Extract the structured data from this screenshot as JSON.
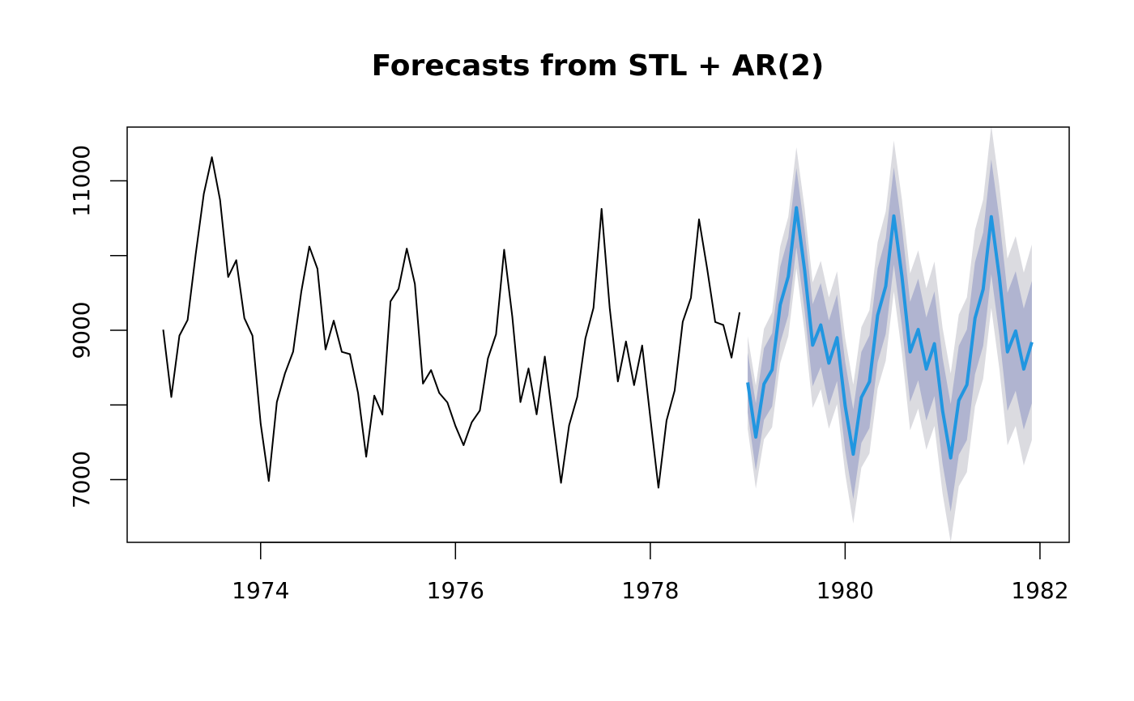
{
  "chart_data": {
    "type": "line",
    "title": "Forecasts from STL +  AR(2)",
    "xlabel": "",
    "ylabel": "",
    "xlim": [
      1972.63,
      1982.3
    ],
    "ylim": [
      6160,
      11720
    ],
    "x_ticks": [
      1974,
      1976,
      1978,
      1980,
      1982
    ],
    "y_ticks": [
      7000,
      8000,
      9000,
      10000,
      11000
    ],
    "y_tick_labels": [
      "7000",
      "",
      "9000",
      "",
      "11000"
    ],
    "grid": false,
    "legend": "none",
    "colors": {
      "history": "#000000",
      "forecast": "#2196e0",
      "pi80": "#b0b4d0",
      "pi95": "#dbdbe0"
    },
    "series": [
      {
        "role": "history",
        "start": 1973.0,
        "frequency": 12,
        "values": [
          9007,
          8106,
          8928,
          9137,
          10017,
          10826,
          11317,
          10744,
          9713,
          9938,
          9161,
          8927,
          7750,
          6981,
          8038,
          8422,
          8714,
          9512,
          10120,
          9823,
          8743,
          9129,
          8710,
          8680,
          8162,
          7306,
          8124,
          7870,
          9387,
          9556,
          10093,
          9620,
          8285,
          8466,
          8160,
          8034,
          7717,
          7461,
          7767,
          7925,
          8623,
          8945,
          10078,
          9179,
          8037,
          8488,
          7874,
          8647,
          7792,
          6957,
          7726,
          8106,
          8890,
          9299,
          10625,
          9302,
          8314,
          8850,
          8265,
          8796,
          7836,
          6892,
          7791,
          8192,
          9115,
          9434,
          10484,
          9827,
          9110,
          9070,
          8633,
          9240
        ]
      },
      {
        "role": "forecast",
        "start": 1979.0,
        "frequency": 12,
        "values": [
          8302,
          7570,
          8280,
          8470,
          9340,
          9720,
          10640,
          9810,
          8800,
          9070,
          8560,
          8900,
          7990,
          7340,
          8100,
          8310,
          9200,
          9590,
          10530,
          9720,
          8710,
          9010,
          8480,
          8820,
          7920,
          7290,
          8060,
          8270,
          9160,
          9550,
          10520,
          9710,
          8710,
          8990,
          8480,
          8840
        ],
        "pi80": [
          [
            7900,
            8700
          ],
          [
            7120,
            8020
          ],
          [
            7800,
            8760
          ],
          [
            7980,
            8960
          ],
          [
            8830,
            9850
          ],
          [
            9200,
            10240
          ],
          [
            10110,
            11170
          ],
          [
            9270,
            10350
          ],
          [
            8250,
            9350
          ],
          [
            8510,
            9630
          ],
          [
            7990,
            9130
          ],
          [
            8320,
            9480
          ],
          [
            7400,
            8580
          ],
          [
            6740,
            7940
          ],
          [
            7490,
            8710
          ],
          [
            7690,
            8930
          ],
          [
            8570,
            9830
          ],
          [
            8950,
            10230
          ],
          [
            9880,
            11180
          ],
          [
            9060,
            10380
          ],
          [
            8040,
            9380
          ],
          [
            8330,
            9690
          ],
          [
            7790,
            9170
          ],
          [
            8120,
            9520
          ],
          [
            7210,
            8630
          ],
          [
            6570,
            8010
          ],
          [
            7330,
            8790
          ],
          [
            7530,
            9010
          ],
          [
            8410,
            9910
          ],
          [
            8790,
            10310
          ],
          [
            9750,
            11290
          ],
          [
            8930,
            10490
          ],
          [
            7920,
            9500
          ],
          [
            8190,
            9790
          ],
          [
            7670,
            9290
          ],
          [
            8020,
            9660
          ]
        ],
        "pi95": [
          [
            7680,
            8920
          ],
          [
            6880,
            8260
          ],
          [
            7540,
            9020
          ],
          [
            7700,
            9240
          ],
          [
            8560,
            10120
          ],
          [
            8920,
            10520
          ],
          [
            9830,
            11450
          ],
          [
            8980,
            10640
          ],
          [
            7960,
            9640
          ],
          [
            8210,
            9930
          ],
          [
            7680,
            9440
          ],
          [
            8010,
            9790
          ],
          [
            7080,
            8900
          ],
          [
            6410,
            8270
          ],
          [
            7160,
            9040
          ],
          [
            7350,
            9270
          ],
          [
            8220,
            10180
          ],
          [
            8590,
            10590
          ],
          [
            9520,
            11540
          ],
          [
            8690,
            10750
          ],
          [
            7660,
            9760
          ],
          [
            7950,
            10070
          ],
          [
            7400,
            9560
          ],
          [
            7720,
            9920
          ],
          [
            6810,
            9030
          ],
          [
            6160,
            8420
          ],
          [
            6910,
            9210
          ],
          [
            7100,
            9440
          ],
          [
            7980,
            10340
          ],
          [
            8350,
            10750
          ],
          [
            9300,
            11740
          ],
          [
            8480,
            10940
          ],
          [
            7460,
            9960
          ],
          [
            7720,
            10260
          ],
          [
            7190,
            9770
          ],
          [
            7530,
            10150
          ]
        ]
      }
    ]
  }
}
